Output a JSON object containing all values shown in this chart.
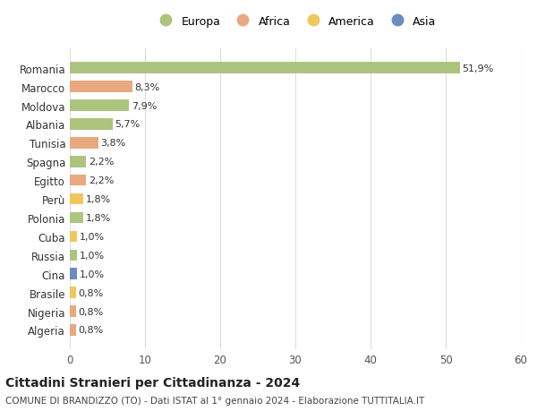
{
  "countries": [
    "Romania",
    "Marocco",
    "Moldova",
    "Albania",
    "Tunisia",
    "Spagna",
    "Egitto",
    "Perù",
    "Polonia",
    "Cuba",
    "Russia",
    "Cina",
    "Brasile",
    "Nigeria",
    "Algeria"
  ],
  "values": [
    51.9,
    8.3,
    7.9,
    5.7,
    3.8,
    2.2,
    2.2,
    1.8,
    1.8,
    1.0,
    1.0,
    1.0,
    0.8,
    0.8,
    0.8
  ],
  "labels": [
    "51,9%",
    "8,3%",
    "7,9%",
    "5,7%",
    "3,8%",
    "2,2%",
    "2,2%",
    "1,8%",
    "1,8%",
    "1,0%",
    "1,0%",
    "1,0%",
    "0,8%",
    "0,8%",
    "0,8%"
  ],
  "continents": [
    "Europa",
    "Africa",
    "Europa",
    "Europa",
    "Africa",
    "Europa",
    "Africa",
    "America",
    "Europa",
    "America",
    "Europa",
    "Asia",
    "America",
    "Africa",
    "Africa"
  ],
  "continent_colors": {
    "Europa": "#adc47f",
    "Africa": "#e8a97e",
    "America": "#f0c75e",
    "Asia": "#6b8cbf"
  },
  "legend_order": [
    "Europa",
    "Africa",
    "America",
    "Asia"
  ],
  "title": "Cittadini Stranieri per Cittadinanza - 2024",
  "subtitle": "COMUNE DI BRANDIZZO (TO) - Dati ISTAT al 1° gennaio 2024 - Elaborazione TUTTITALIA.IT",
  "xlim": [
    0,
    60
  ],
  "xticks": [
    0,
    10,
    20,
    30,
    40,
    50,
    60
  ],
  "background_color": "#ffffff",
  "grid_color": "#dddddd",
  "bar_height": 0.6
}
